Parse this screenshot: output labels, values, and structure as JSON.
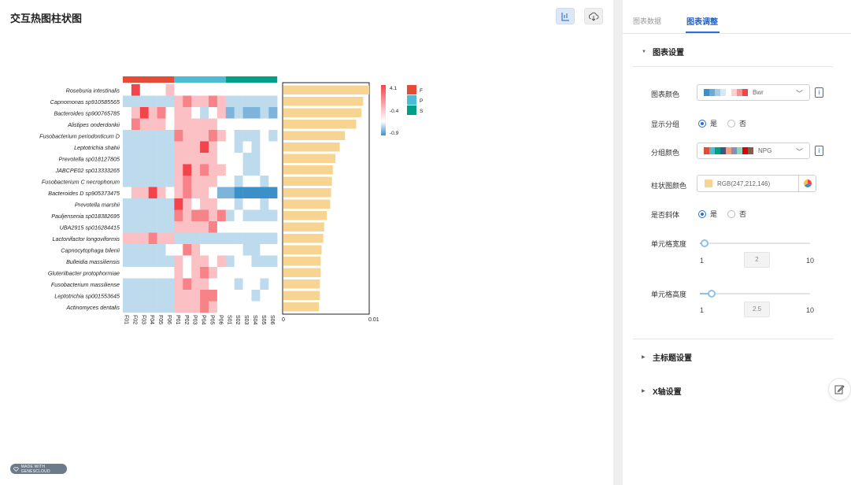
{
  "page_title": "交互热图柱状图",
  "tabs": {
    "data": "图表数据",
    "adjust": "图表调整"
  },
  "sections": {
    "chart_settings": "图表设置",
    "main_title_settings": "主标题设置",
    "x_axis_settings": "X轴设置"
  },
  "settings": {
    "chart_color": {
      "label": "图表颜色",
      "value": "Bwr"
    },
    "show_group": {
      "label": "显示分组",
      "yes": "是",
      "no": "否",
      "selected": "yes"
    },
    "group_color": {
      "label": "分组颜色",
      "value": "NPG"
    },
    "bar_color": {
      "label": "柱状图颜色",
      "value": "RGB(247,212,146)"
    },
    "italic": {
      "label": "是否斜体",
      "yes": "是",
      "no": "否",
      "selected": "yes"
    },
    "cell_width": {
      "label": "单元格宽度",
      "min": "1",
      "max": "10",
      "value": "2"
    },
    "cell_height": {
      "label": "单元格高度",
      "min": "1",
      "max": "10",
      "value": "2.5"
    }
  },
  "badge_text": "MADE WITH GENESCLOUD",
  "colors": {
    "accent": "#2b6fd6",
    "bar": "#f7d492",
    "group_F": "#e64b35",
    "group_P": "#4dbbd5",
    "group_S": "#00a087",
    "heat_high": "#f3434b",
    "heat_mid": "#ffffff",
    "heat_low": "#3d8fc9"
  },
  "chart_data": {
    "type": "heatmap",
    "rows": [
      "Roseburia intestinalis",
      "Capnomonas sp910585565",
      "Bacteroides sp900765785",
      "Alistipes onderdonkii",
      "Fusobacterium periodonticum D",
      "Leptotrichia shahii",
      "Prevotella sp018127805",
      "JABCPE02 sp013333265",
      "Fusobacterium C necrophorum",
      "Bacteroides D sp905373475",
      "Prevotella marshii",
      "Pauljensenia sp018382695",
      "UBA2915 sp016284415",
      "Lactonifactor longoviformis",
      "Capnocytophaga bilenii",
      "Bulleidia massiliensis",
      "Gluteriibacter protophormiae",
      "Fusobacterium massiliense",
      "Leptotrichia sp001553645",
      "Actinomyces dentalis"
    ],
    "columns": [
      "F01",
      "F02",
      "F03",
      "F04",
      "F05",
      "F06",
      "P01",
      "P02",
      "P03",
      "P04",
      "P05",
      "P06",
      "S01",
      "S02",
      "S03",
      "S04",
      "S05",
      "S06"
    ],
    "groups": [
      {
        "name": "F",
        "columns": [
          0,
          1,
          2,
          3,
          4,
          5
        ]
      },
      {
        "name": "P",
        "columns": [
          6,
          7,
          8,
          9,
          10,
          11
        ]
      },
      {
        "name": "S",
        "columns": [
          12,
          13,
          14,
          15,
          16,
          17
        ]
      }
    ],
    "values": [
      [
        0,
        3,
        0,
        0,
        0,
        1,
        0,
        0,
        0,
        0,
        0,
        0,
        0,
        0,
        0,
        0,
        0,
        0
      ],
      [
        -1,
        -1,
        -1,
        -1,
        -1,
        -1,
        1,
        2,
        1,
        1,
        2,
        1,
        -1,
        -1,
        -1,
        -1,
        -1,
        -1
      ],
      [
        0,
        1,
        3,
        1,
        2,
        0,
        1,
        1,
        0,
        -1,
        0,
        1,
        -2,
        -1,
        -2,
        -2,
        -1,
        -2
      ],
      [
        0,
        2,
        1,
        1,
        1,
        0,
        1,
        1,
        1,
        1,
        1,
        0,
        0,
        0,
        0,
        0,
        0,
        0
      ],
      [
        -1,
        -1,
        -1,
        -1,
        -1,
        -1,
        2,
        1,
        1,
        1,
        2,
        1,
        0,
        -1,
        -1,
        -1,
        0,
        -1
      ],
      [
        -1,
        -1,
        -1,
        -1,
        -1,
        -1,
        1,
        1,
        1,
        3,
        1,
        0,
        0,
        -1,
        0,
        -1,
        0,
        0
      ],
      [
        -1,
        -1,
        -1,
        -1,
        -1,
        -1,
        1,
        1,
        1,
        1,
        1,
        0,
        0,
        0,
        -1,
        -1,
        0,
        0
      ],
      [
        -1,
        -1,
        -1,
        -1,
        -1,
        -1,
        1,
        3,
        1,
        2,
        1,
        1,
        0,
        0,
        -1,
        -1,
        0,
        0
      ],
      [
        -1,
        -1,
        -1,
        -1,
        -1,
        -1,
        1,
        2,
        1,
        1,
        1,
        0,
        0,
        -1,
        0,
        0,
        -1,
        0
      ],
      [
        0,
        1,
        1,
        3,
        1,
        0,
        1,
        2,
        1,
        1,
        0,
        -2,
        -2,
        -3,
        -3,
        -3,
        -3,
        -3
      ],
      [
        -1,
        -1,
        -1,
        -1,
        -1,
        -1,
        3,
        1,
        0,
        1,
        1,
        0,
        0,
        -1,
        0,
        0,
        -1,
        0
      ],
      [
        -1,
        -1,
        -1,
        -1,
        -1,
        -1,
        2,
        1,
        2,
        2,
        1,
        2,
        -1,
        0,
        -1,
        -1,
        -1,
        -1
      ],
      [
        -1,
        -1,
        -1,
        -1,
        -1,
        -1,
        1,
        1,
        1,
        1,
        2,
        0,
        0,
        0,
        0,
        0,
        0,
        0
      ],
      [
        1,
        1,
        1,
        2,
        1,
        1,
        -1,
        -1,
        -1,
        -1,
        -1,
        -1,
        -1,
        -1,
        -1,
        -1,
        -1,
        -1
      ],
      [
        -1,
        -1,
        -1,
        -1,
        -1,
        0,
        0,
        2,
        1,
        0,
        0,
        0,
        0,
        0,
        -1,
        -1,
        0,
        0
      ],
      [
        -1,
        -1,
        -1,
        -1,
        -1,
        -1,
        1,
        0,
        1,
        1,
        0,
        1,
        -1,
        0,
        0,
        -1,
        -1,
        -1
      ],
      [
        0,
        0,
        0,
        0,
        0,
        0,
        1,
        0,
        1,
        2,
        1,
        0,
        0,
        0,
        0,
        0,
        0,
        0
      ],
      [
        -1,
        -1,
        -1,
        -1,
        -1,
        -1,
        1,
        2,
        1,
        1,
        0,
        0,
        0,
        -1,
        0,
        0,
        -1,
        0
      ],
      [
        -1,
        -1,
        -1,
        -1,
        -1,
        -1,
        1,
        1,
        1,
        2,
        2,
        0,
        0,
        0,
        0,
        -1,
        0,
        0
      ],
      [
        -1,
        -1,
        -1,
        -1,
        -1,
        -1,
        1,
        1,
        1,
        2,
        1,
        0,
        0,
        0,
        0,
        0,
        0,
        0
      ]
    ],
    "colorbar": {
      "max_label": "4.1",
      "mid_label": "-0.4",
      "min_label": "-0.9"
    },
    "legend": [
      "F",
      "P",
      "S"
    ],
    "bars": {
      "values": [
        0.01,
        0.0093,
        0.0091,
        0.0085,
        0.0072,
        0.0066,
        0.0061,
        0.0058,
        0.0057,
        0.0056,
        0.0055,
        0.0051,
        0.0048,
        0.0047,
        0.0045,
        0.0044,
        0.0044,
        0.0043,
        0.0043,
        0.0042
      ],
      "axis_min_label": "0",
      "axis_max_label": "0.01",
      "xlim": [
        0,
        0.01
      ]
    }
  }
}
